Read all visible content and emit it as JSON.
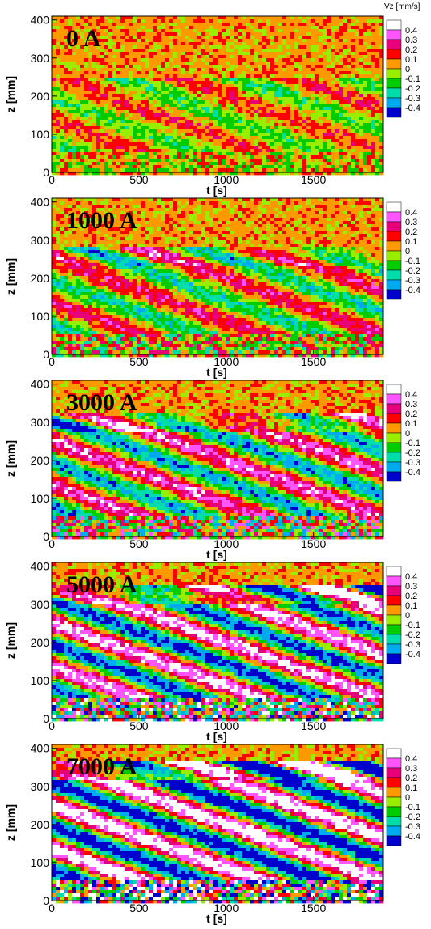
{
  "chart_data": {
    "type": "heatmap",
    "colorbar": {
      "title": "Vz [mm/s]",
      "levels": [
        "0.4",
        "0.3",
        "0.2",
        "0.1",
        "0",
        "-0.1",
        "-0.2",
        "-0.3",
        "-0.4"
      ],
      "colors": [
        "#ffffff",
        "#ff55ff",
        "#e8007a",
        "#ff0000",
        "#ff9900",
        "#99ee00",
        "#00cc00",
        "#00ddaa",
        "#00aaee",
        "#0000cc"
      ]
    },
    "xlabel": "t [s]",
    "ylabel": "z [mm]",
    "xlim": [
      0,
      1900
    ],
    "ylim": [
      0,
      410
    ],
    "xticks": [
      "0",
      "500",
      "1000",
      "1500"
    ],
    "yticks": [
      "0",
      "100",
      "200",
      "300",
      "400"
    ],
    "panels": [
      {
        "label": "0 A",
        "current_A": 0
      },
      {
        "label": "1000 A",
        "current_A": 1000
      },
      {
        "label": "3000 A",
        "current_A": 3000
      },
      {
        "label": "5000 A",
        "current_A": 5000
      },
      {
        "label": "7000 A",
        "current_A": 7000
      }
    ]
  }
}
